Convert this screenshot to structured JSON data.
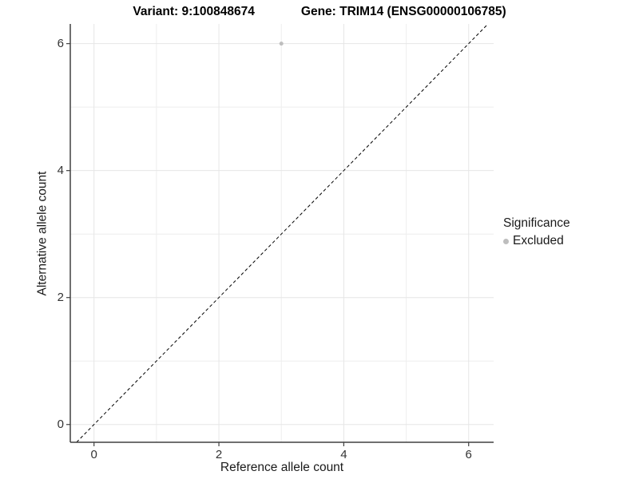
{
  "chart_data": {
    "type": "scatter",
    "title_left": "Variant: 9:100848674",
    "title_right": "Gene: TRIM14 (ENSG00000106785)",
    "xlabel": "Reference allele count",
    "ylabel": "Alternative allele count",
    "xlim": [
      -0.38,
      6.4
    ],
    "ylim": [
      -0.28,
      6.31
    ],
    "xticks": [
      0,
      2,
      4,
      6
    ],
    "yticks": [
      0,
      2,
      4,
      6
    ],
    "minor_xticks": [
      1,
      3,
      5
    ],
    "minor_yticks": [
      1,
      3,
      5
    ],
    "grid": true,
    "points": [
      {
        "x": 3,
        "y": 6,
        "series": "Excluded"
      }
    ],
    "point_color": "#bebebe",
    "point_radius": 2.5,
    "abline": {
      "slope": 1,
      "intercept": 0,
      "dash": "4 3",
      "color": "#000000"
    },
    "legend": {
      "position": "right",
      "title": "Significance",
      "entries": [
        {
          "label": "Excluded",
          "color": "#bebebe"
        }
      ]
    },
    "colors": {
      "grid_major": "#e6e6e6",
      "grid_minor": "#eeeeee",
      "axis_line": "#404040",
      "tick_mark": "#404040",
      "tick_text": "#333333",
      "background": "#ffffff"
    }
  }
}
